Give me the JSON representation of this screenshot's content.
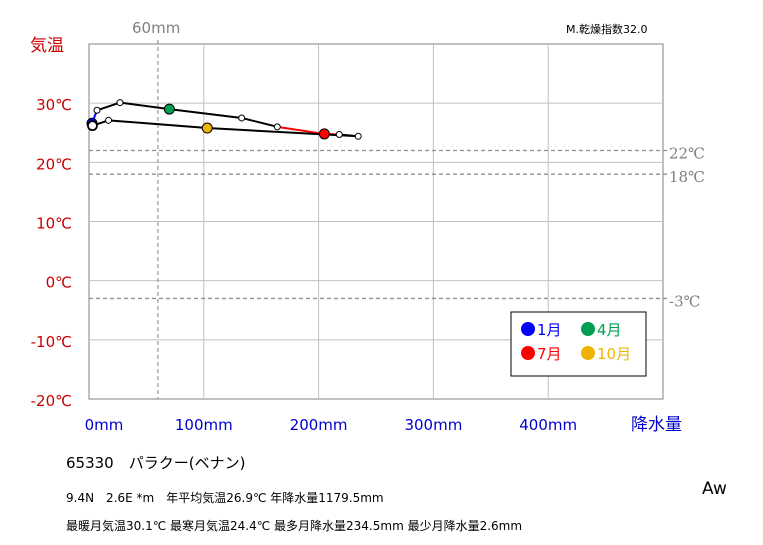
{
  "chart_data": {
    "type": "line",
    "title": "",
    "ylabel": "気温",
    "xlabel": "降水量",
    "xlim": [
      0,
      500
    ],
    "ylim": [
      -20,
      40
    ],
    "x_ticks": [
      "0mm",
      "100mm",
      "200mm",
      "300mm",
      "400mm"
    ],
    "y_ticks": [
      "-20℃",
      "-10℃",
      "0℃",
      "10℃",
      "20℃",
      "30℃"
    ],
    "grid": true,
    "dry_index": "M.乾燥指数32.0",
    "marker_60mm": {
      "label": "60mm",
      "x": 60
    },
    "thresholds": [
      {
        "label": "22℃",
        "y": 22
      },
      {
        "label": "18℃",
        "y": 18
      },
      {
        "label": "-3℃",
        "y": -3
      }
    ],
    "series": [
      {
        "points": [
          {
            "month": 1,
            "x": 2.6,
            "y": 26.6
          },
          {
            "month": 2,
            "x": 7,
            "y": 28.8
          },
          {
            "month": 3,
            "x": 27,
            "y": 30.1
          },
          {
            "month": 4,
            "x": 70,
            "y": 29.0
          },
          {
            "month": 5,
            "x": 133,
            "y": 27.5
          },
          {
            "month": 6,
            "x": 164,
            "y": 26.0
          },
          {
            "month": 7,
            "x": 205,
            "y": 24.8
          },
          {
            "month": 8,
            "x": 218,
            "y": 24.7
          },
          {
            "month": 9,
            "x": 234.5,
            "y": 24.4
          },
          {
            "month": 10,
            "x": 103,
            "y": 25.8
          },
          {
            "month": 11,
            "x": 17,
            "y": 27.1
          },
          {
            "month": 12,
            "x": 3,
            "y": 26.2
          }
        ]
      }
    ],
    "highlight_months": [
      {
        "month": 1,
        "label": "1月",
        "color": "#0000ff"
      },
      {
        "month": 4,
        "label": "4月",
        "color": "#00a050"
      },
      {
        "month": 7,
        "label": "7月",
        "color": "#ff0000"
      },
      {
        "month": 10,
        "label": "10月",
        "color": "#f0b400"
      }
    ],
    "segment_colors": {
      "winter": "#0000ff",
      "summer": "#ff0000",
      "default": "#000000"
    }
  },
  "station": "65330　パラクー(ベナン)",
  "info_line1": "9.4N　2.6E *m　年平均気温26.9℃ 年降水量1179.5mm",
  "info_line2": "最暖月気温30.1℃ 最寒月気温24.4℃ 最多月降水量234.5mm 最少月降水量2.6mm",
  "climate_class": "Aw"
}
